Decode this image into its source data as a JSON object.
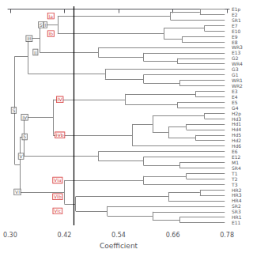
{
  "chart_data": {
    "type": "dendrogram",
    "xlabel": "Coefficient",
    "xlim": [
      0.295,
      0.785
    ],
    "xticks": [
      {
        "value": 0.3,
        "label": "0.30"
      },
      0.42,
      0.54,
      0.66,
      0.78
    ],
    "grid": false,
    "color": "#888888",
    "leaf_x": 0.775,
    "vline": {
      "x": 0.44,
      "color": "#000000"
    },
    "categories": [
      "E1p",
      "E2",
      "SR1",
      "E7",
      "E10",
      "E9",
      "E8",
      "WR3",
      "E13",
      "G2",
      "WR4",
      "G3",
      "G1",
      "WR1",
      "WR2",
      "E3",
      "E4",
      "E5",
      "G4",
      "H2p",
      "Hd3",
      "Hd1",
      "Hd4",
      "Hd5",
      "Hd2",
      "Hd6",
      "E6",
      "E12",
      "M1",
      "SR4",
      "T1",
      "T2",
      "T3",
      "HR2",
      "HR3",
      "HR4",
      "SR2",
      "SR3",
      "HR1",
      "E11"
    ],
    "tree": {
      "height": 0.31,
      "labels": [
        {
          "text": "S",
          "x": 0.308,
          "color": "#444444"
        }
      ],
      "children": [
        {
          "height": 0.34,
          "children": [
            {
              "height": 0.365,
              "labels": [
                {
                  "text": "III",
                  "x": 0.342,
                  "color": "#444444"
                }
              ],
              "children": [
                {
                  "height": 0.405,
                  "labels": [
                    {
                      "text": "S",
                      "x": 0.368,
                      "color": "#444444"
                    },
                    {
                      "text": "I",
                      "x": 0.378,
                      "color": "#444444"
                    }
                  ],
                  "children": [
                    {
                      "height": 0.655,
                      "labels": [
                        {
                          "text": "Ia",
                          "x": 0.39,
                          "color": "#cc0000"
                        }
                      ],
                      "children": [
                        {
                          "height": 0.72,
                          "children": [
                            "E1p",
                            "E2"
                          ]
                        },
                        "SR1"
                      ]
                    },
                    {
                      "height": 0.64,
                      "labels": [
                        {
                          "text": "Ib",
                          "x": 0.39,
                          "color": "#cc0000"
                        }
                      ],
                      "children": [
                        {
                          "height": 0.73,
                          "children": [
                            "E7",
                            "E10"
                          ]
                        },
                        {
                          "height": 0.68,
                          "children": [
                            "E9",
                            "E8"
                          ]
                        }
                      ]
                    }
                  ]
                },
                {
                  "height": 0.495,
                  "labels": [
                    {
                      "text": "II",
                      "x": 0.356,
                      "color": "#444444"
                    }
                  ],
                  "children": [
                    "WR3",
                    {
                      "height": 0.595,
                      "children": [
                        "E13",
                        {
                          "height": 0.67,
                          "children": [
                            "G2",
                            "WR4"
                          ]
                        }
                      ]
                    }
                  ]
                }
              ]
            },
            {
              "height": 0.51,
              "children": [
                "G3",
                {
                  "height": 0.595,
                  "children": [
                    "G1",
                    {
                      "height": 0.675,
                      "children": [
                        "WR1",
                        "WR2"
                      ]
                    }
                  ]
                }
              ]
            }
          ]
        },
        {
          "height": 0.322,
          "children": [
            {
              "height": 0.33,
              "labels": [
                {
                  "text": "S",
                  "x": 0.332,
                  "color": "#444444"
                }
              ],
              "children": [
                {
                  "height": 0.395,
                  "labels": [
                    {
                      "text": "IV",
                      "x": 0.332,
                      "color": "#444444"
                    }
                  ],
                  "children": [
                    {
                      "height": 0.555,
                      "labels": [
                        {
                          "text": "IV",
                          "x": 0.41,
                          "color": "#cc0000"
                        }
                      ],
                      "children": [
                        {
                          "height": 0.71,
                          "children": [
                            "E3",
                            "E4"
                          ]
                        },
                        {
                          "height": 0.67,
                          "children": [
                            "E5",
                            "G4"
                          ]
                        }
                      ]
                    },
                    {
                      "height": 0.57,
                      "labels": [
                        {
                          "text": "IVb",
                          "x": 0.41,
                          "color": "#cc0000"
                        }
                      ],
                      "children": [
                        {
                          "height": 0.615,
                          "children": [
                            {
                              "height": 0.73,
                              "children": [
                                "H2p",
                                "Hd3"
                              ]
                            },
                            {
                              "height": 0.65,
                              "children": [
                                {
                                  "height": 0.69,
                                  "children": [
                                    "Hd1",
                                    "Hd4"
                                  ]
                                },
                                {
                                  "height": 0.71,
                                  "children": [
                                    "Hd5",
                                    "Hd2"
                                  ]
                                }
                              ]
                            }
                          ]
                        },
                        "Hd6"
                      ]
                    }
                  ]
                },
                {
                  "height": 0.495,
                  "labels": [
                    {
                      "text": "V",
                      "x": 0.324,
                      "color": "#444444"
                    }
                  ],
                  "children": [
                    "E6",
                    {
                      "height": 0.595,
                      "children": [
                        "E12",
                        {
                          "height": 0.675,
                          "children": [
                            "M1",
                            "SR4"
                          ]
                        }
                      ]
                    }
                  ]
                }
              ]
            },
            {
              "height": 0.42,
              "labels": [
                {
                  "text": "VI",
                  "x": 0.316,
                  "color": "#444444"
                }
              ],
              "children": [
                {
                  "height": 0.595,
                  "labels": [
                    {
                      "text": "VIa",
                      "x": 0.405,
                      "color": "#cc0000"
                    }
                  ],
                  "children": [
                    {
                      "height": 0.69,
                      "children": [
                        "T1",
                        "T2"
                      ]
                    },
                    "T3"
                  ]
                },
                {
                  "height": 0.445,
                  "children": [
                    {
                      "height": 0.65,
                      "labels": [
                        {
                          "text": "VIb",
                          "x": 0.405,
                          "color": "#cc0000"
                        }
                      ],
                      "children": [
                        {
                          "height": 0.72,
                          "children": [
                            "HR2",
                            "HR3"
                          ]
                        },
                        "HR4"
                      ]
                    },
                    {
                      "height": 0.515,
                      "labels": [
                        {
                          "text": "VIc",
                          "x": 0.405,
                          "color": "#cc0000"
                        }
                      ],
                      "children": [
                        "SR2",
                        {
                          "height": 0.615,
                          "children": [
                            "SR3",
                            {
                              "height": 0.675,
                              "children": [
                                "HR1",
                                "E11"
                              ]
                            }
                          ]
                        }
                      ]
                    }
                  ]
                }
              ]
            }
          ]
        }
      ]
    }
  }
}
